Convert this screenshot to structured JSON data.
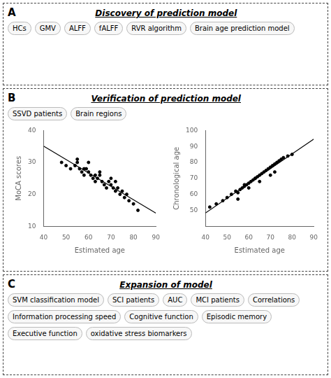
{
  "chart_data": [
    {
      "type": "scatter",
      "annotations": [
        "A",
        "Discovery of prediction model",
        "HCs",
        "GMV",
        "ALFF",
        "fALFF",
        "RVR algorithm",
        "Brain age prediction model",
        "B",
        "Verification of prediction model",
        "SSVD patients",
        "Brain regions",
        "C",
        "Expansion of model",
        "SVM classification model",
        "SCI patients",
        "AUC",
        "MCI patients",
        "Correlations",
        "Information processing speed",
        "Cognitive function",
        "Episodic memory",
        "Executive function",
        "oxidative stress biomarkers"
      ],
      "x_label": "Estimated age",
      "y_label": "MoCA scores",
      "xlim": [
        40,
        90
      ],
      "ylim": [
        10,
        40
      ],
      "xticks": [
        40,
        50,
        60,
        70,
        80,
        90
      ],
      "yticks": [
        10,
        20,
        30,
        40
      ],
      "grid": false,
      "series": [
        {
          "type": "scatter",
          "color": "#000000",
          "x": [
            48,
            50,
            52,
            54,
            55,
            56,
            57,
            58,
            59,
            60,
            61,
            62,
            63,
            64,
            65,
            66,
            67,
            68,
            69,
            70,
            71,
            72,
            73,
            74,
            75,
            76,
            77,
            78,
            80,
            82,
            55,
            60,
            65,
            70,
            72,
            63,
            58
          ],
          "values": [
            30,
            29,
            28,
            29,
            30,
            28,
            27,
            26,
            28,
            27,
            26,
            25,
            24,
            25,
            26,
            24,
            23,
            22,
            24,
            23,
            22,
            21,
            22,
            20,
            21,
            19,
            20,
            18,
            17,
            15,
            31,
            30,
            27,
            25,
            24,
            26,
            28
          ]
        },
        {
          "type": "line",
          "color": "#000000",
          "x": [
            40,
            90
          ],
          "values": [
            35.08,
            14.11
          ]
        }
      ]
    },
    {
      "type": "scatter",
      "x_label": "Estimated age",
      "y_label": "Chronological age",
      "xlim": [
        40,
        90
      ],
      "ylim": [
        40,
        100
      ],
      "xticks": [
        40,
        50,
        60,
        70,
        80,
        90
      ],
      "yticks": [
        50,
        60,
        70,
        80,
        90,
        100
      ],
      "grid": false,
      "series": [
        {
          "type": "scatter",
          "color": "#000000",
          "x": [
            42,
            45,
            48,
            50,
            52,
            54,
            55,
            56,
            57,
            58,
            59,
            60,
            61,
            62,
            63,
            64,
            65,
            66,
            67,
            68,
            69,
            70,
            71,
            72,
            73,
            74,
            75,
            76,
            78,
            80,
            55,
            60,
            65,
            70,
            72,
            63,
            58
          ],
          "values": [
            52,
            54,
            56,
            58,
            60,
            62,
            61,
            63,
            64,
            65,
            66,
            67,
            68,
            69,
            70,
            71,
            72,
            73,
            74,
            75,
            76,
            77,
            78,
            79,
            80,
            81,
            82,
            83,
            84,
            85,
            57,
            64,
            68,
            72,
            74,
            70,
            66
          ]
        },
        {
          "type": "line",
          "color": "#000000",
          "x": [
            40,
            90
          ],
          "values": [
            48.27,
            94.58
          ]
        }
      ]
    }
  ]
}
